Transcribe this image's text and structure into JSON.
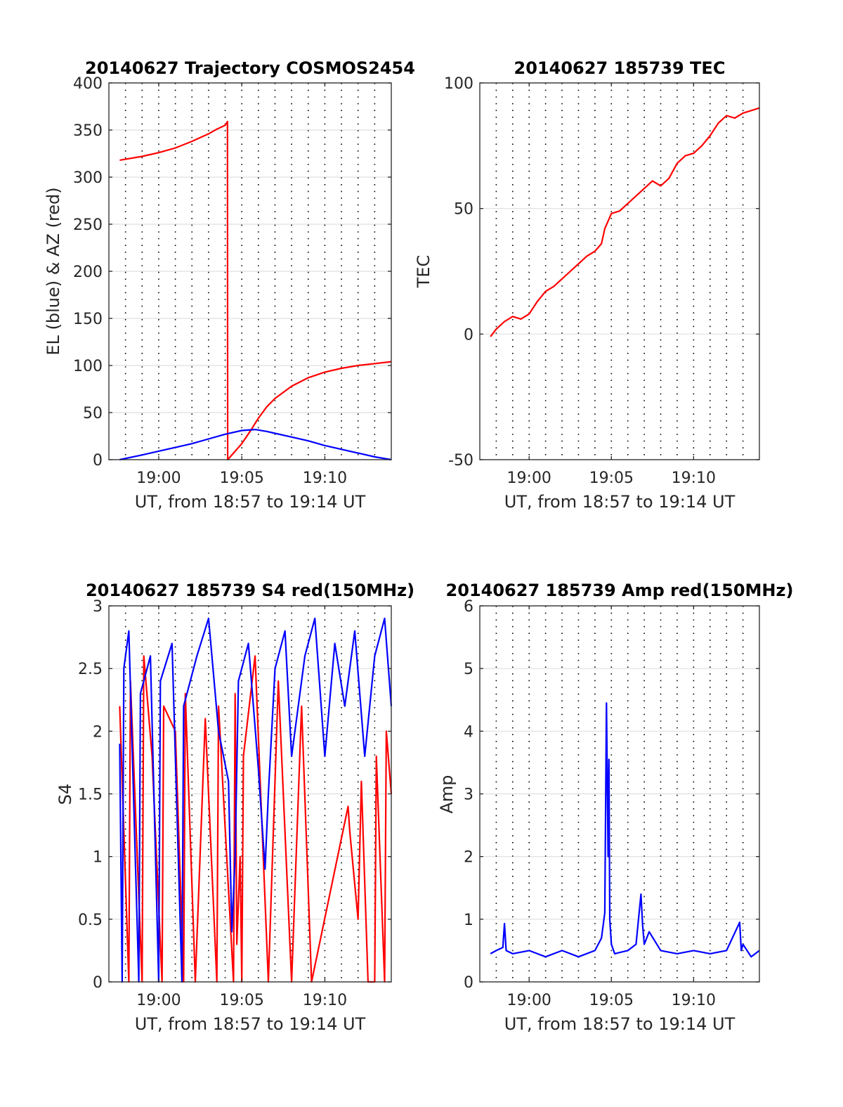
{
  "colors": {
    "red": "#ff0000",
    "blue": "#0000ff",
    "axis": "#262626",
    "grid": "#dfdfdf",
    "background": "#ffffff"
  },
  "chart_data": [
    {
      "type": "line",
      "title": "20140627 Trajectory COSMOS2454",
      "xlabel": "UT, from 18:57 to 19:14 UT",
      "ylabel": "EL (blue) & AZ (red)",
      "x_unit": "minutes after 18:57 UT",
      "xlim": [
        0,
        17
      ],
      "ylim": [
        0,
        400
      ],
      "xticks": [
        {
          "x": 3,
          "label": "19:00"
        },
        {
          "x": 8,
          "label": "19:05"
        },
        {
          "x": 13,
          "label": "19:10"
        }
      ],
      "yticks": [
        0,
        50,
        100,
        150,
        200,
        250,
        300,
        350,
        400
      ],
      "grid": {
        "horizontal": true,
        "vertical_dotted_every_min": 1
      },
      "series": [
        {
          "name": "AZ",
          "color": "red",
          "x": [
            0.65,
            2,
            3,
            4,
            5,
            6,
            6.5,
            7,
            7.14,
            7.15,
            7.5,
            8,
            8.5,
            9,
            9.5,
            10,
            11,
            12,
            13,
            14,
            15,
            16,
            17
          ],
          "y": [
            318,
            322,
            326,
            331,
            338,
            346,
            351,
            355,
            359,
            0,
            7,
            17,
            30,
            44,
            56,
            65,
            78,
            87,
            93,
            97,
            100,
            102,
            104
          ]
        },
        {
          "name": "EL",
          "color": "blue",
          "x": [
            0.65,
            2,
            3,
            4,
            5,
            6,
            7,
            8,
            8.8,
            9.5,
            10,
            11,
            12,
            13,
            14,
            15,
            16,
            17
          ],
          "y": [
            0,
            5,
            9,
            13,
            17,
            22,
            27,
            31,
            32,
            30,
            28,
            24,
            20,
            15,
            11,
            7,
            3,
            0
          ]
        }
      ]
    },
    {
      "type": "line",
      "title": "20140627 185739 TEC",
      "xlabel": "UT, from 18:57 to 19:14 UT",
      "ylabel": "TEC",
      "x_unit": "minutes after 18:57 UT",
      "xlim": [
        0,
        17
      ],
      "ylim": [
        -50,
        100
      ],
      "xticks": [
        {
          "x": 3,
          "label": "19:00"
        },
        {
          "x": 8,
          "label": "19:05"
        },
        {
          "x": 13,
          "label": "19:10"
        }
      ],
      "yticks": [
        -50,
        0,
        50,
        100
      ],
      "grid": {
        "horizontal": true,
        "vertical_dotted_every_min": 1
      },
      "series": [
        {
          "name": "TEC",
          "color": "red",
          "x": [
            0.65,
            1,
            1.5,
            2,
            2.5,
            3,
            3.5,
            4,
            4.5,
            5,
            5.5,
            6,
            6.5,
            7,
            7.4,
            7.6,
            8,
            8.5,
            9,
            9.5,
            10,
            10.5,
            11,
            11.5,
            12,
            12.5,
            13,
            13.5,
            14,
            14.5,
            15,
            15.5,
            16,
            16.5,
            17
          ],
          "y": [
            -1,
            2,
            5,
            7,
            6,
            8,
            13,
            17,
            19,
            22,
            25,
            28,
            31,
            33,
            36,
            42,
            48,
            49,
            52,
            55,
            58,
            61,
            59,
            62,
            68,
            71,
            72,
            75,
            79,
            84,
            87,
            86,
            88,
            89,
            90
          ]
        }
      ]
    },
    {
      "type": "line",
      "title": "20140627 185739 S4 red(150MHz)",
      "xlabel": "UT, from 18:57 to 19:14 UT",
      "ylabel": "S4",
      "x_unit": "minutes after 18:57 UT",
      "xlim": [
        0,
        17
      ],
      "ylim": [
        0,
        3
      ],
      "xticks": [
        {
          "x": 3,
          "label": "19:00"
        },
        {
          "x": 8,
          "label": "19:05"
        },
        {
          "x": 13,
          "label": "19:10"
        }
      ],
      "yticks": [
        0,
        0.5,
        1,
        1.5,
        2,
        2.5,
        3
      ],
      "grid": {
        "horizontal": true,
        "vertical_dotted_every_min": 1
      },
      "series": [
        {
          "name": "red",
          "color": "red",
          "x": [
            0.65,
            1.2,
            1.3,
            2.0,
            2.1,
            2.6,
            3.2,
            3.3,
            4.0,
            4.5,
            4.6,
            5.2,
            5.8,
            6.5,
            6.6,
            7.5,
            7.6,
            7.7,
            7.9,
            8.0,
            8.1,
            8.8,
            9.6,
            10.2,
            11.0,
            11.6,
            12.2,
            14.4,
            14.5,
            15.0,
            15.2,
            15.6,
            16.0,
            16.1,
            16.6,
            16.7,
            17.0
          ],
          "y": [
            2.2,
            0,
            2.4,
            0,
            2.6,
            1.8,
            0,
            2.2,
            2.0,
            0,
            2.3,
            0,
            2.1,
            0,
            2.2,
            0,
            2.3,
            0.3,
            1.0,
            0,
            1.8,
            2.6,
            0,
            2.4,
            0,
            2.2,
            0,
            1.4,
            1.2,
            0.5,
            1.6,
            0,
            0,
            1.8,
            0,
            2.0,
            1.5
          ]
        },
        {
          "name": "blue",
          "color": "blue",
          "x": [
            0.65,
            0.8,
            0.9,
            1.2,
            1.8,
            1.9,
            2.5,
            3.0,
            3.1,
            3.8,
            4.4,
            4.5,
            5.3,
            6.0,
            6.6,
            7.2,
            7.4,
            7.6,
            7.8,
            8.4,
            9.0,
            9.4,
            9.6,
            10.0,
            10.6,
            11.0,
            11.8,
            12.4,
            13.0,
            13.6,
            14.2,
            14.8,
            15.4,
            16.0,
            16.6,
            17.0
          ],
          "y": [
            1.9,
            0,
            2.5,
            2.8,
            0,
            2.3,
            2.6,
            0,
            2.4,
            2.7,
            0,
            2.2,
            2.6,
            2.9,
            2.0,
            1.6,
            0.4,
            1.0,
            2.4,
            2.7,
            1.7,
            0.9,
            1.5,
            2.5,
            2.8,
            1.8,
            2.6,
            2.9,
            1.8,
            2.7,
            2.2,
            2.8,
            1.8,
            2.6,
            2.9,
            2.2
          ]
        }
      ]
    },
    {
      "type": "line",
      "title": "20140627 185739 Amp red(150MHz)",
      "xlabel": "UT, from 18:57 to 19:14 UT",
      "ylabel": "Amp",
      "x_unit": "minutes after 18:57 UT",
      "xlim": [
        0,
        17
      ],
      "ylim": [
        0,
        6
      ],
      "xticks": [
        {
          "x": 3,
          "label": "19:00"
        },
        {
          "x": 8,
          "label": "19:05"
        },
        {
          "x": 13,
          "label": "19:10"
        }
      ],
      "yticks": [
        0,
        1,
        2,
        3,
        4,
        5,
        6
      ],
      "grid": {
        "horizontal": true,
        "vertical_dotted_every_min": 1
      },
      "series": [
        {
          "name": "blue",
          "color": "blue",
          "x": [
            0.65,
            1.0,
            1.4,
            1.5,
            1.6,
            2.0,
            3.0,
            4.0,
            5.0,
            6.0,
            7.0,
            7.4,
            7.6,
            7.7,
            7.8,
            7.85,
            7.9,
            8.0,
            8.2,
            9.0,
            9.5,
            9.8,
            9.9,
            10.0,
            10.3,
            11.0,
            12.0,
            13.0,
            14.0,
            15.0,
            15.8,
            15.9,
            16.0,
            16.5,
            17.0
          ],
          "y": [
            0.45,
            0.5,
            0.55,
            0.93,
            0.5,
            0.45,
            0.5,
            0.4,
            0.5,
            0.4,
            0.5,
            0.7,
            1.1,
            4.45,
            2.0,
            3.55,
            1.0,
            0.6,
            0.45,
            0.5,
            0.6,
            1.4,
            0.9,
            0.6,
            0.8,
            0.5,
            0.45,
            0.5,
            0.45,
            0.5,
            0.95,
            0.5,
            0.6,
            0.4,
            0.5
          ]
        }
      ]
    }
  ]
}
